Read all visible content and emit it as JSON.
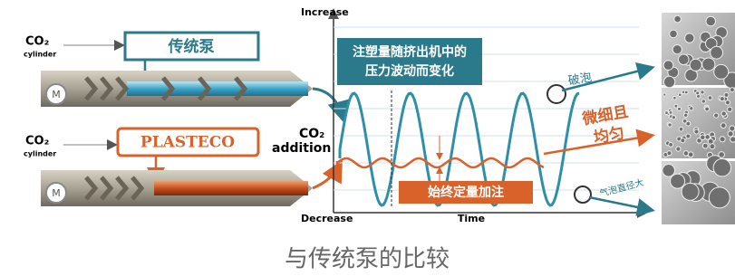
{
  "pumps": {
    "co2_top": "CO₂",
    "cylinder_top": "cylinder",
    "co2_bottom": "CO₂",
    "cylinder_bottom": "cylinder",
    "traditional": "传统泵",
    "plasteco": "PLASTECO",
    "motor_top": "M",
    "motor_bottom": "M",
    "addition_co2": "CO₂",
    "addition": "addition"
  },
  "plot": {
    "increase": "Increase",
    "decrease": "Decrease",
    "time": "Time",
    "note_line1": "注塑量随挤出机中的",
    "note_line2": "压力波动而变化",
    "constant": "始终定量加注"
  },
  "results": {
    "broken": "破泡",
    "fine_line1": "微细且",
    "fine_line2": "均匀",
    "large": "气泡直径大"
  },
  "caption": "与传统泵的比较"
}
